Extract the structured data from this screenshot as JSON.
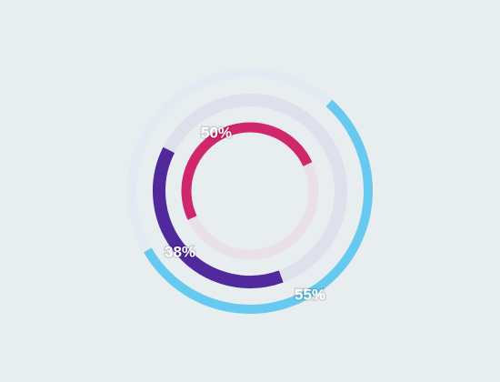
{
  "chart_data": {
    "type": "radial",
    "values": [
      55,
      38,
      50
    ],
    "value_labels": [
      "55%",
      "38%",
      "50%"
    ],
    "colors": [
      "#66c9f0",
      "#50299d",
      "#d0266c"
    ],
    "track_colors": [
      "#e1ebf1",
      "#dee0ec",
      "#e9e0e8"
    ]
  }
}
